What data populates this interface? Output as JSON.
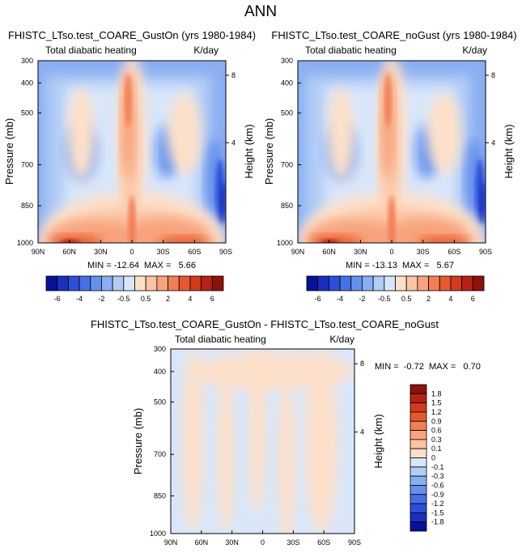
{
  "page_title": "ANN",
  "colors": {
    "neg": [
      "#08119a",
      "#1a2fc0",
      "#2c4fd8",
      "#4570e6",
      "#6690ee",
      "#8aaef2",
      "#b1ccf5",
      "#d8e6fa"
    ],
    "neutral": "#ffffff",
    "pos": [
      "#fde0c9",
      "#fbc4a2",
      "#f7a37c",
      "#f27e56",
      "#e8582f",
      "#d53a1a",
      "#b52214",
      "#8d1209"
    ],
    "frame": "#000000"
  },
  "chart_data": [
    {
      "type": "heatmap",
      "title": "FHISTC_LTso.test_COARE_GustOn (yrs 1980-1984)",
      "left_label": "Total diabatic heating",
      "right_label": "K/day",
      "ylabel": "Pressure (mb)",
      "ylabel_right": "Height (km)",
      "x_ticks": [
        "90N",
        "60N",
        "30N",
        "0",
        "30S",
        "60S",
        "90S"
      ],
      "y_ticks": [
        "300",
        "400",
        "500",
        "700",
        "850",
        "1000"
      ],
      "y_right_ticks": [
        "8",
        "4"
      ],
      "stats": "MIN = -12.64  MAX =   5.66",
      "xlim": [
        90,
        -90
      ],
      "ylim": [
        300,
        1000
      ]
    },
    {
      "type": "heatmap",
      "title": "FHISTC_LTso.test_COARE_noGust (yrs 1980-1984)",
      "left_label": "Total diabatic heating",
      "right_label": "K/day",
      "ylabel": "Pressure (mb)",
      "ylabel_right": "Height (km)",
      "x_ticks": [
        "90N",
        "60N",
        "30N",
        "0",
        "30S",
        "60S",
        "90S"
      ],
      "y_ticks": [
        "300",
        "400",
        "500",
        "700",
        "850",
        "1000"
      ],
      "y_right_ticks": [
        "8",
        "4"
      ],
      "stats": "MIN = -13.13  MAX =   5.67",
      "xlim": [
        90,
        -90
      ],
      "ylim": [
        300,
        1000
      ]
    },
    {
      "type": "heatmap",
      "title": "FHISTC_LTso.test_COARE_GustOn - FHISTC_LTso.test_COARE_noGust",
      "left_label": "Total diabatic heating",
      "right_label": "K/day",
      "ylabel": "Pressure (mb)",
      "ylabel_right": "Height (km)",
      "x_ticks": [
        "90N",
        "60N",
        "30N",
        "0",
        "30S",
        "60S",
        "90S"
      ],
      "y_ticks": [
        "300",
        "400",
        "500",
        "700",
        "850",
        "1000"
      ],
      "y_right_ticks": [
        "8",
        "4"
      ],
      "stats": "MIN =  -0.72  MAX =   0.70",
      "xlim": [
        90,
        -90
      ],
      "ylim": [
        300,
        1000
      ]
    }
  ],
  "colorbar_top": {
    "labels": [
      "-6",
      "-4",
      "-2",
      "-0.5",
      "0.5",
      "2",
      "4",
      "6"
    ]
  },
  "colorbar_diff": {
    "labels": [
      "1.8",
      "1.5",
      "1.2",
      "0.9",
      "0.6",
      "0.3",
      "0.1",
      "0",
      "-0.1",
      "-0.3",
      "-0.6",
      "-0.9",
      "-1.2",
      "-1.5",
      "-1.8"
    ]
  }
}
